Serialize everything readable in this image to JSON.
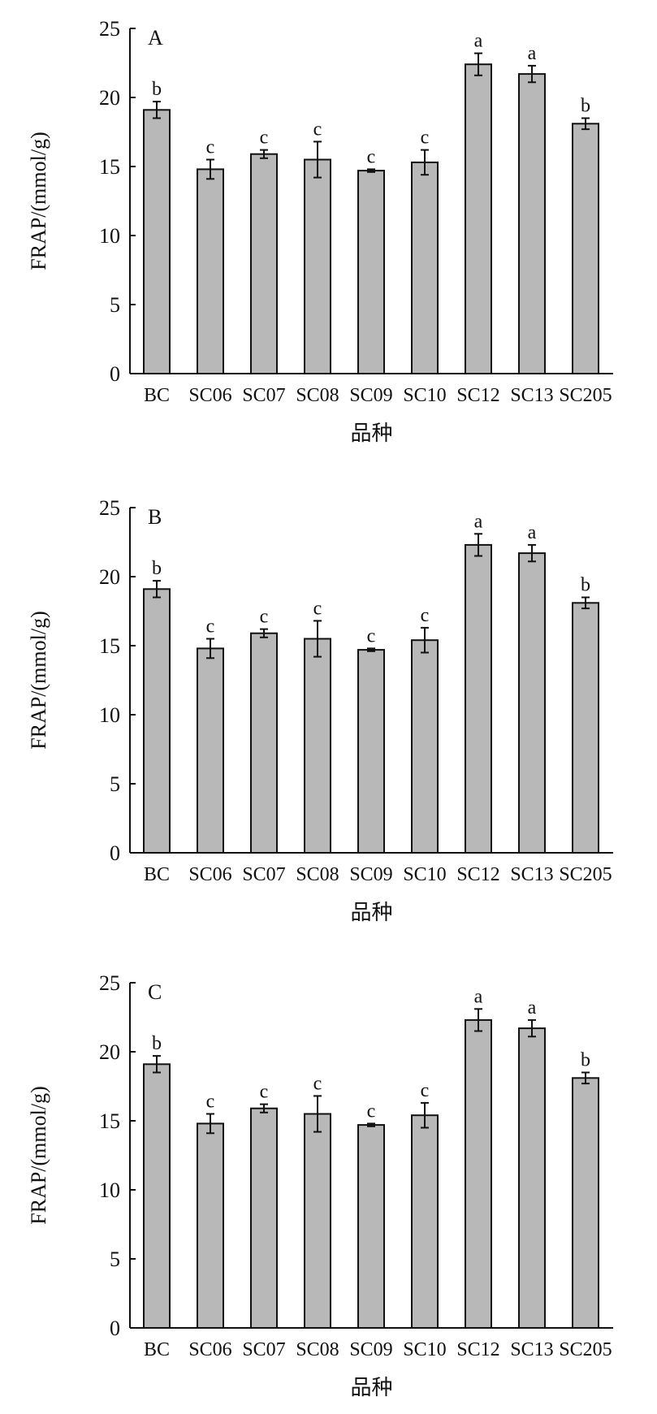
{
  "chart_data": [
    {
      "type": "bar",
      "panel_label": "A",
      "categories": [
        "BC",
        "SC06",
        "SC07",
        "SC08",
        "SC09",
        "SC10",
        "SC12",
        "SC13",
        "SC205"
      ],
      "values": [
        19.1,
        14.8,
        15.9,
        15.5,
        14.7,
        15.3,
        22.4,
        21.7,
        18.1
      ],
      "errors": [
        0.6,
        0.7,
        0.3,
        1.3,
        0.1,
        0.9,
        0.8,
        0.6,
        0.4
      ],
      "significance": [
        "b",
        "c",
        "c",
        "c",
        "c",
        "c",
        "a",
        "a",
        "b"
      ],
      "ylabel": "FRAP/(mmol/g)",
      "xlabel": "品种",
      "ylim": [
        0,
        25
      ],
      "yticks": [
        0,
        5,
        10,
        15,
        20,
        25
      ],
      "bar_color": "#b8b8b8",
      "grid": false
    },
    {
      "type": "bar",
      "panel_label": "B",
      "categories": [
        "BC",
        "SC06",
        "SC07",
        "SC08",
        "SC09",
        "SC10",
        "SC12",
        "SC13",
        "SC205"
      ],
      "values": [
        19.1,
        14.8,
        15.9,
        15.5,
        14.7,
        15.4,
        22.3,
        21.7,
        18.1
      ],
      "errors": [
        0.6,
        0.7,
        0.3,
        1.3,
        0.1,
        0.9,
        0.8,
        0.6,
        0.4
      ],
      "significance": [
        "b",
        "c",
        "c",
        "c",
        "c",
        "c",
        "a",
        "a",
        "b"
      ],
      "ylabel": "FRAP/(mmol/g)",
      "xlabel": "品种",
      "ylim": [
        0,
        25
      ],
      "yticks": [
        0,
        5,
        10,
        15,
        20,
        25
      ],
      "bar_color": "#b8b8b8",
      "grid": false
    },
    {
      "type": "bar",
      "panel_label": "C",
      "categories": [
        "BC",
        "SC06",
        "SC07",
        "SC08",
        "SC09",
        "SC10",
        "SC12",
        "SC13",
        "SC205"
      ],
      "values": [
        19.1,
        14.8,
        15.9,
        15.5,
        14.7,
        15.4,
        22.3,
        21.7,
        18.1
      ],
      "errors": [
        0.6,
        0.7,
        0.3,
        1.3,
        0.1,
        0.9,
        0.8,
        0.6,
        0.4
      ],
      "significance": [
        "b",
        "c",
        "c",
        "c",
        "c",
        "c",
        "a",
        "a",
        "b"
      ],
      "ylabel": "FRAP/(mmol/g)",
      "xlabel": "品种",
      "ylim": [
        0,
        25
      ],
      "yticks": [
        0,
        5,
        10,
        15,
        20,
        25
      ],
      "bar_color": "#b8b8b8",
      "grid": false
    }
  ]
}
